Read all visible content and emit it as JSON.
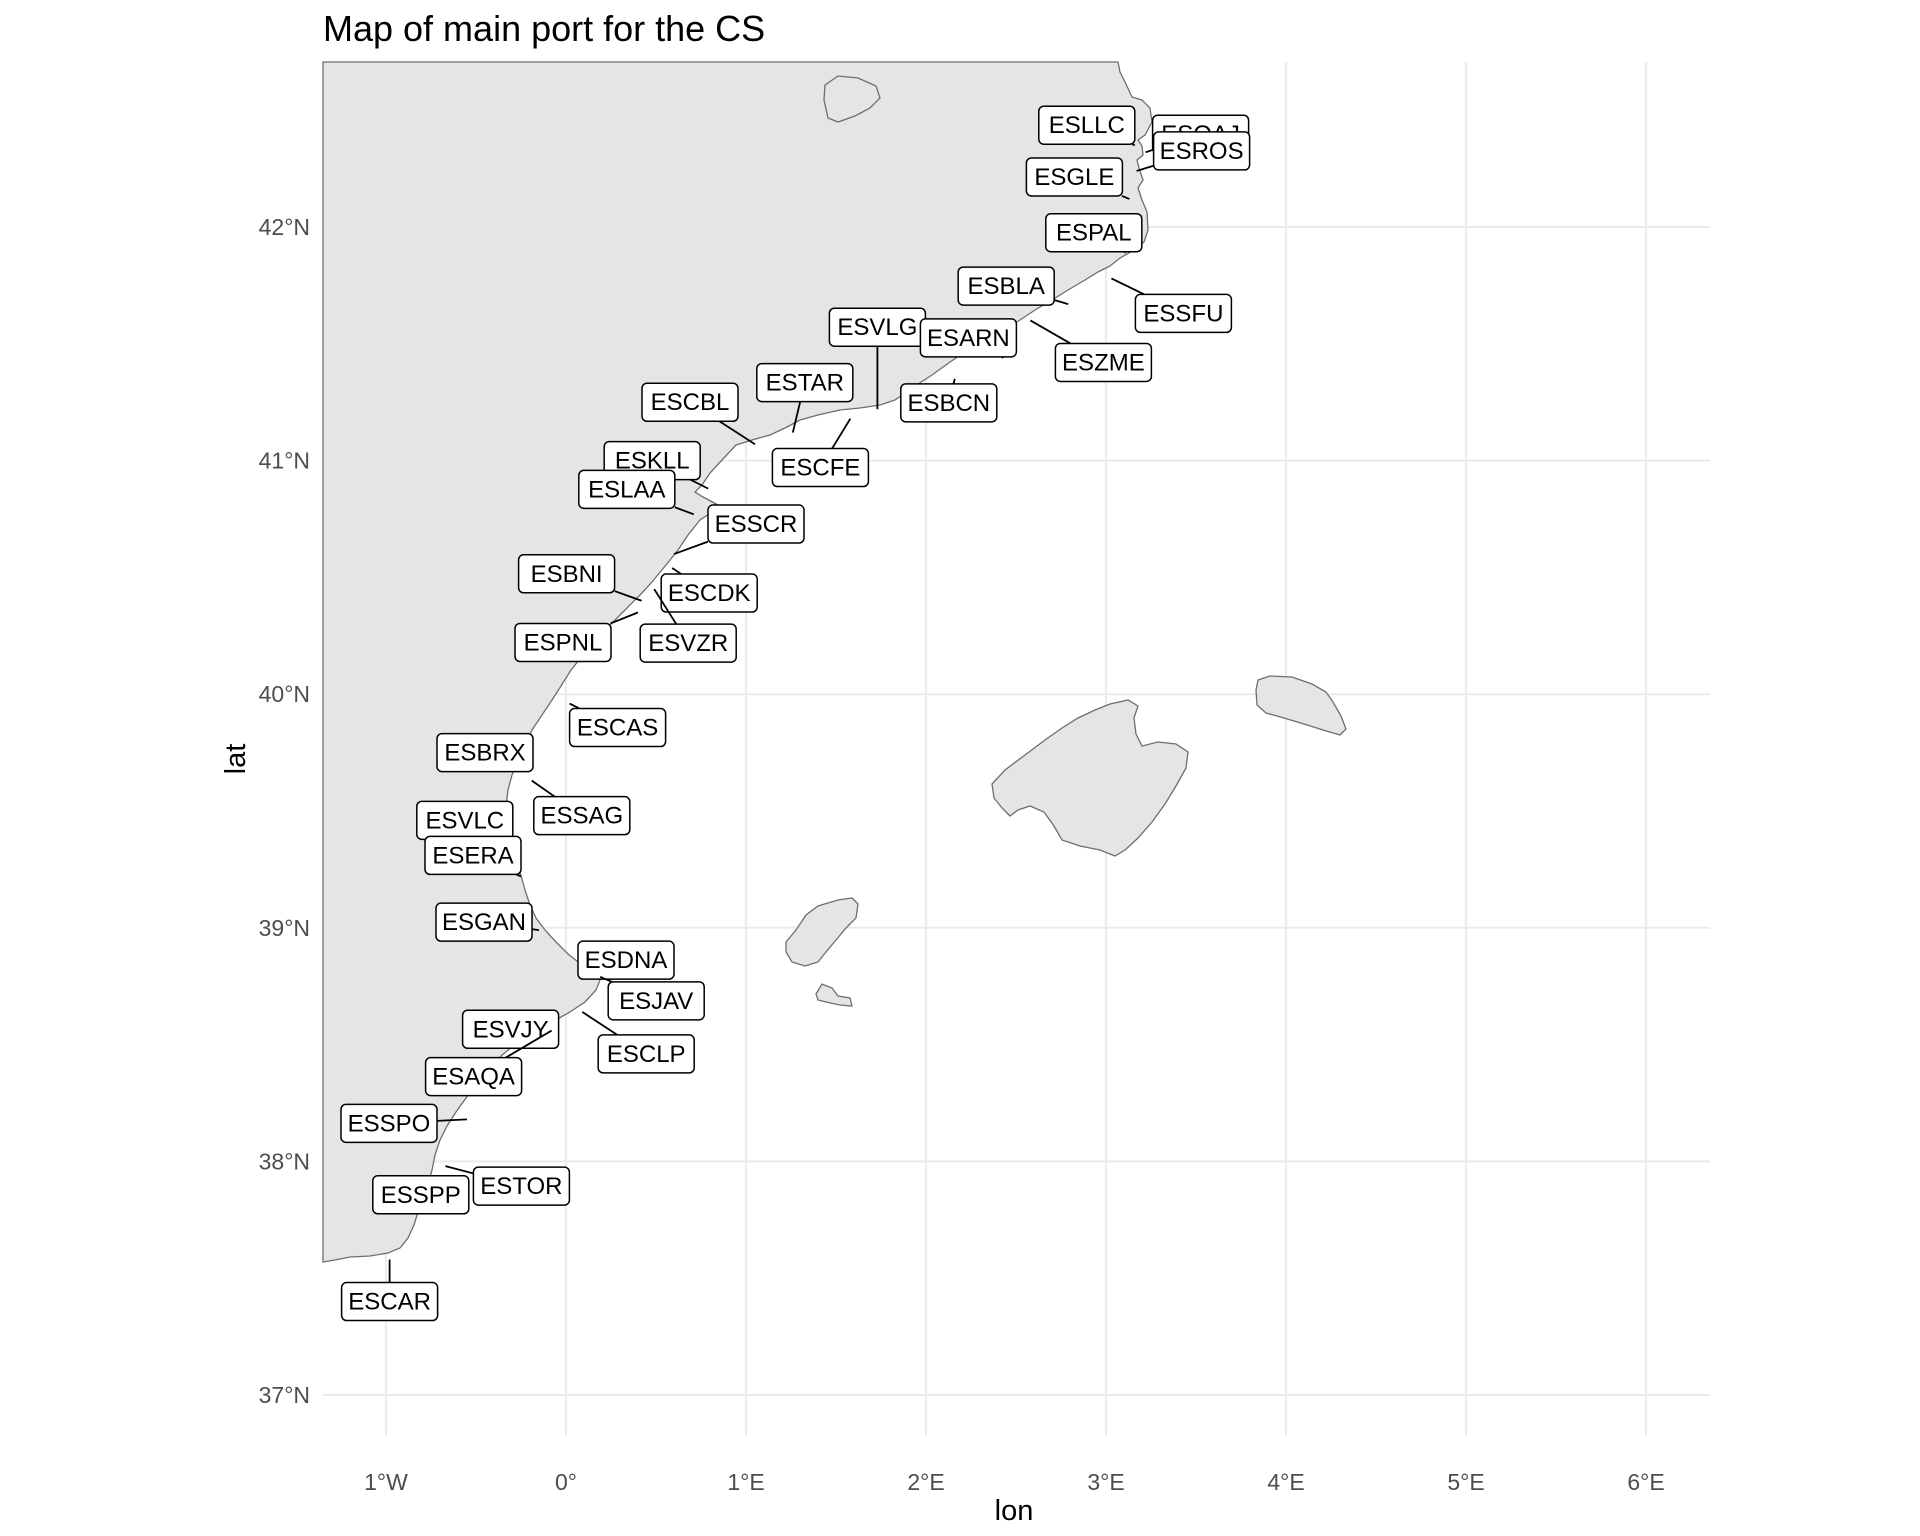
{
  "title": "Map of main port for the CS",
  "x_axis": {
    "title": "lon",
    "ticks": [
      {
        "value": -1,
        "label": "1°W"
      },
      {
        "value": 0,
        "label": "0°"
      },
      {
        "value": 1,
        "label": "1°E"
      },
      {
        "value": 2,
        "label": "2°E"
      },
      {
        "value": 3,
        "label": "3°E"
      },
      {
        "value": 4,
        "label": "4°E"
      },
      {
        "value": 5,
        "label": "5°E"
      },
      {
        "value": 6,
        "label": "6°E"
      }
    ]
  },
  "y_axis": {
    "title": "lat",
    "ticks": [
      {
        "value": 37,
        "label": "37°N"
      },
      {
        "value": 38,
        "label": "38°N"
      },
      {
        "value": 39,
        "label": "39°N"
      },
      {
        "value": 40,
        "label": "40°N"
      },
      {
        "value": 41,
        "label": "41°N"
      },
      {
        "value": 42,
        "label": "42°N"
      }
    ]
  },
  "colors": {
    "land": "#e5e5e5",
    "coastline": "#6e6e6e",
    "grid": "#ebebeb",
    "label_border": "#000000"
  },
  "ports": [
    {
      "code": "ESLLC",
      "lon": 3.16,
      "lat": 42.35
    },
    {
      "code": "ESQAJ",
      "lon": 3.22,
      "lat": 42.32
    },
    {
      "code": "ESGLE",
      "lon": 3.13,
      "lat": 42.12
    },
    {
      "code": "ESROS",
      "lon": 3.17,
      "lat": 42.24
    },
    {
      "code": "ESPAL",
      "lon": 3.11,
      "lat": 41.89
    },
    {
      "code": "ESSFU",
      "lon": 3.03,
      "lat": 41.78
    },
    {
      "code": "ESBLA",
      "lon": 2.79,
      "lat": 41.67
    },
    {
      "code": "ESZME",
      "lon": 2.58,
      "lat": 41.6
    },
    {
      "code": "ESVLG",
      "lon": 1.73,
      "lat": 41.22
    },
    {
      "code": "ESARN",
      "lon": 2.43,
      "lat": 41.44
    },
    {
      "code": "ESTAR",
      "lon": 1.26,
      "lat": 41.12
    },
    {
      "code": "ESBCN",
      "lon": 2.16,
      "lat": 41.35
    },
    {
      "code": "ESCBL",
      "lon": 1.05,
      "lat": 41.07
    },
    {
      "code": "ESCFE",
      "lon": 1.58,
      "lat": 41.18
    },
    {
      "code": "ESKLL",
      "lon": 0.79,
      "lat": 40.88
    },
    {
      "code": "ESLAA",
      "lon": 0.71,
      "lat": 40.77
    },
    {
      "code": "ESSCR",
      "lon": 0.6,
      "lat": 40.6
    },
    {
      "code": "ESBNI",
      "lon": 0.42,
      "lat": 40.4
    },
    {
      "code": "ESCDK",
      "lon": 0.59,
      "lat": 40.54
    },
    {
      "code": "ESPNL",
      "lon": 0.4,
      "lat": 40.35
    },
    {
      "code": "ESVZR",
      "lon": 0.49,
      "lat": 40.45
    },
    {
      "code": "ESCAS",
      "lon": 0.02,
      "lat": 39.96
    },
    {
      "code": "ESBRX",
      "lon": -0.2,
      "lat": 39.75
    },
    {
      "code": "ESSAG",
      "lon": -0.19,
      "lat": 39.63
    },
    {
      "code": "ESVLC",
      "lon": -0.34,
      "lat": 39.46
    },
    {
      "code": "ESERA",
      "lon": -0.25,
      "lat": 39.22
    },
    {
      "code": "ESGAN",
      "lon": -0.15,
      "lat": 38.99
    },
    {
      "code": "ESDNA",
      "lon": 0.1,
      "lat": 38.84
    },
    {
      "code": "ESJAV",
      "lon": 0.19,
      "lat": 38.79
    },
    {
      "code": "ESCLP",
      "lon": 0.09,
      "lat": 38.64
    },
    {
      "code": "ESVJY",
      "lon": -0.23,
      "lat": 38.51
    },
    {
      "code": "ESAQA",
      "lon": -0.08,
      "lat": 38.56
    },
    {
      "code": "ESSPO",
      "lon": -0.55,
      "lat": 38.18
    },
    {
      "code": "ESTOR",
      "lon": -0.67,
      "lat": 37.98
    },
    {
      "code": "ESSPP",
      "lon": -0.79,
      "lat": 37.81
    },
    {
      "code": "ESCAR",
      "lon": -0.98,
      "lat": 37.58
    }
  ]
}
